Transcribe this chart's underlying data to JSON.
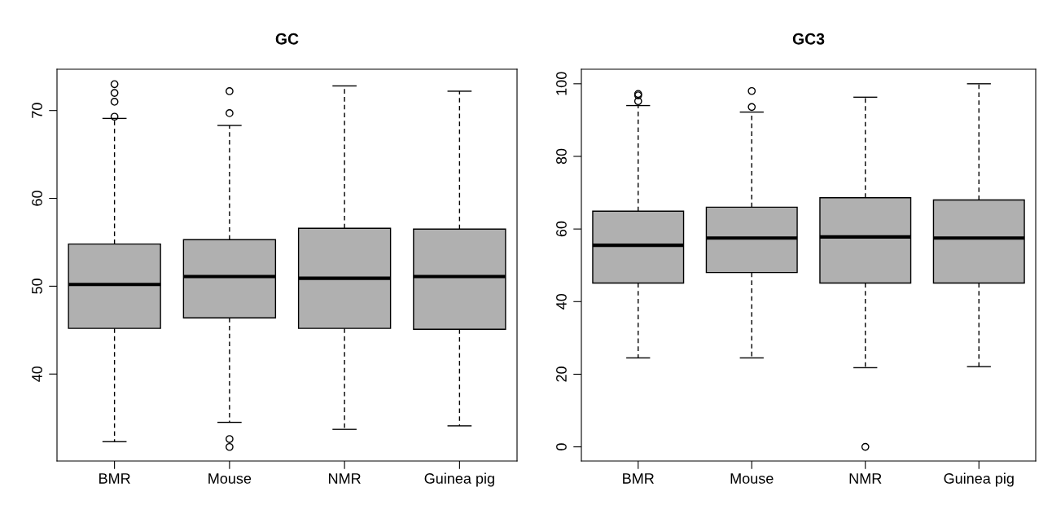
{
  "chart_data": [
    {
      "type": "box",
      "title": "GC",
      "categories": [
        "BMR",
        "Mouse",
        "NMR",
        "Guinea pig"
      ],
      "color": "#b0b0b0",
      "grid": false,
      "ylim": [
        30.1,
        74.7
      ],
      "yticks": [
        40,
        50,
        60,
        70
      ],
      "boxes": [
        {
          "low": 32.3,
          "q1": 45.2,
          "median": 50.2,
          "q3": 54.8,
          "high": 69.1,
          "outliers": [
            73.0,
            72.0,
            71.0,
            69.3
          ]
        },
        {
          "low": 34.5,
          "q1": 46.4,
          "median": 51.1,
          "q3": 55.3,
          "high": 68.3,
          "outliers": [
            72.2,
            69.7,
            32.6,
            31.7
          ]
        },
        {
          "low": 33.7,
          "q1": 45.2,
          "median": 50.9,
          "q3": 56.6,
          "high": 72.8
        },
        {
          "low": 34.1,
          "q1": 45.1,
          "median": 51.1,
          "q3": 56.5,
          "high": 72.2
        }
      ]
    },
    {
      "type": "box",
      "title": "GC3",
      "categories": [
        "BMR",
        "Mouse",
        "NMR",
        "Guinea pig"
      ],
      "color": "#b0b0b0",
      "grid": false,
      "ylim": [
        -3.9,
        104.0
      ],
      "yticks": [
        0,
        20,
        40,
        60,
        80,
        100
      ],
      "boxes": [
        {
          "low": 24.5,
          "q1": 45.1,
          "median": 55.5,
          "q3": 64.9,
          "high": 94.0,
          "outliers": [
            97.2,
            96.8,
            95.2
          ]
        },
        {
          "low": 24.5,
          "q1": 48.0,
          "median": 57.5,
          "q3": 66.0,
          "high": 92.2,
          "outliers": [
            98.0,
            93.6
          ]
        },
        {
          "low": 21.8,
          "q1": 45.1,
          "median": 57.8,
          "q3": 68.6,
          "high": 96.3,
          "outliers": [
            0
          ]
        },
        {
          "low": 22.1,
          "q1": 45.1,
          "median": 57.5,
          "q3": 68.0,
          "high": 100
        }
      ]
    }
  ]
}
